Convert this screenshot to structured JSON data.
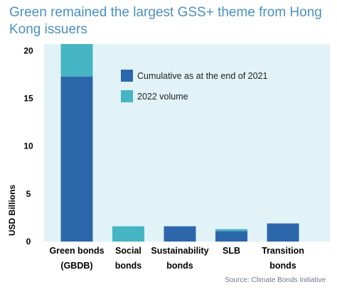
{
  "title": "Green remained the largest GSS+ theme from Hong Kong issuers",
  "source": "Source: Climate Bonds Initiative",
  "colors": {
    "cumulative": "#2d67ab",
    "volume_2022": "#45b5c3",
    "plot_background": "#e1f3f7",
    "title": "#4a8fc1"
  },
  "chart_data": {
    "type": "bar",
    "stacked": true,
    "categories": [
      [
        "Green bonds",
        "(GBDB)"
      ],
      [
        "Social",
        "bonds"
      ],
      [
        "Sustainability",
        "bonds"
      ],
      [
        "SLB"
      ],
      [
        "Transition",
        "bonds"
      ]
    ],
    "series": [
      {
        "name": "Cumulative as at the end of 2021",
        "color": "#2d67ab",
        "values": [
          17.3,
          0,
          1.6,
          1.1,
          1.9
        ]
      },
      {
        "name": "2022 volume",
        "color": "#45b5c3",
        "values": [
          3.4,
          1.6,
          0,
          0.2,
          0
        ]
      }
    ],
    "ylabel": "USD Billions",
    "xlabel": "",
    "ylim": [
      0,
      20.7
    ],
    "yticks": [
      0,
      5,
      10,
      15,
      20
    ],
    "grid": false,
    "legend_position": "top-right"
  }
}
